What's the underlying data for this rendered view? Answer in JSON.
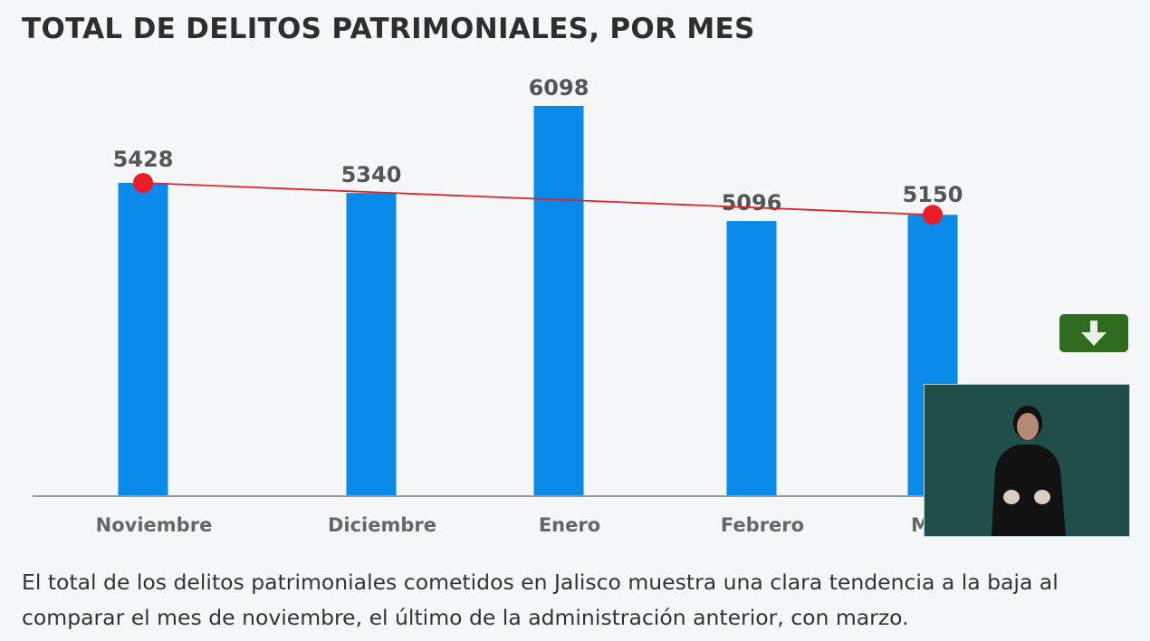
{
  "title": "TOTAL DE DELITOS PATRIMONIALES, POR MES",
  "caption": "El total de los delitos patrimoniales cometidos en Jalisco muestra una clara tendencia a la baja al comparar el mes de noviembre, el último de la administración anterior, con marzo.",
  "download_icon": "arrow-down-icon",
  "colors": {
    "bar": "#0a8ae8",
    "trend": "#d9252a",
    "download": "#2e6b1e"
  },
  "chart_data": {
    "type": "bar",
    "title": "TOTAL DE DELITOS PATRIMONIALES, POR MES",
    "categories": [
      "Noviembre",
      "Diciembre",
      "Enero",
      "Febrero",
      "Marzo"
    ],
    "values": [
      5428,
      5340,
      6098,
      5096,
      5150
    ],
    "data_labels": [
      "5428",
      "5340",
      "6098",
      "5096",
      "5150"
    ],
    "trend_line": {
      "from": "Noviembre",
      "to": "Marzo",
      "values": [
        5428,
        5150
      ]
    },
    "ylim": [
      2700,
      6200
    ],
    "grid": false,
    "legend": "none"
  }
}
